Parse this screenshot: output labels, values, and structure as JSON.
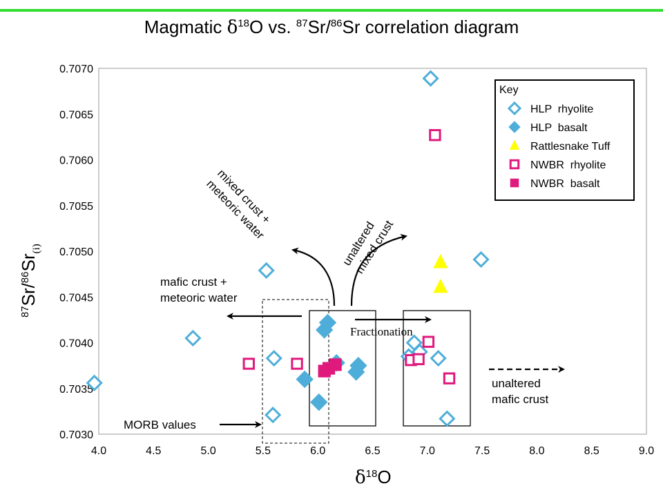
{
  "title_parts": {
    "a": "Magmatic ",
    "delta": "δ",
    "sup1": "18",
    "b": "O vs. ",
    "sup2": "87",
    "c": "Sr/",
    "sup3": "86",
    "d": "Sr correlation diagram"
  },
  "colors": {
    "rhyolite_blue": "#4eaed9",
    "nwbr_pink": "#e0197d",
    "tuff_yellow": "#ffff00",
    "frame_rule_green": "#33dd33"
  },
  "chart_data": {
    "type": "scatter",
    "title": "Magmatic δ18O vs. 87Sr/86Sr correlation diagram",
    "xlabel": "δ18O",
    "ylabel": "87Sr/86Sr(i)",
    "xlim": [
      4.0,
      9.0
    ],
    "ylim": [
      0.703,
      0.707
    ],
    "x_ticks": [
      "4.0",
      "4.5",
      "5.0",
      "5.5",
      "6.0",
      "6.5",
      "7.0",
      "7.5",
      "8.0",
      "8.5",
      "9.0"
    ],
    "y_ticks": [
      "0.7070",
      "0.7065",
      "0.7060",
      "0.7055",
      "0.7050",
      "0.7045",
      "0.7040",
      "0.7035",
      "0.7030"
    ],
    "grid": false,
    "legend_position": "top-right",
    "legend_title": "Key",
    "series": [
      {
        "name": "HLP  rhyolite",
        "marker": "diamond-open",
        "color": "#4eaed9",
        "points": [
          [
            3.96,
            0.70356
          ],
          [
            4.86,
            0.70405
          ],
          [
            5.53,
            0.70479
          ],
          [
            5.6,
            0.70383
          ],
          [
            5.59,
            0.70321
          ],
          [
            7.03,
            0.70689
          ],
          [
            7.49,
            0.70491
          ],
          [
            6.88,
            0.704
          ],
          [
            6.93,
            0.7039
          ],
          [
            6.83,
            0.70385
          ],
          [
            7.1,
            0.70383
          ],
          [
            7.18,
            0.70317
          ]
        ]
      },
      {
        "name": "HLP  basalt",
        "marker": "diamond-filled",
        "color": "#4eaed9",
        "points": [
          [
            6.09,
            0.70422
          ],
          [
            6.06,
            0.70414
          ],
          [
            5.88,
            0.7036
          ],
          [
            6.01,
            0.70335
          ],
          [
            6.17,
            0.70378
          ],
          [
            6.37,
            0.70375
          ],
          [
            6.35,
            0.70368
          ]
        ]
      },
      {
        "name": "Rattlesnake Tuff",
        "marker": "triangle-filled",
        "color": "#ffff00",
        "points": [
          [
            7.12,
            0.70488
          ],
          [
            7.12,
            0.70461
          ]
        ]
      },
      {
        "name": "NWBR  rhyolite",
        "marker": "square-open",
        "color": "#e0197d",
        "points": [
          [
            7.07,
            0.70627
          ],
          [
            5.37,
            0.70377
          ],
          [
            5.81,
            0.70377
          ],
          [
            7.01,
            0.70401
          ],
          [
            6.85,
            0.70381
          ],
          [
            6.92,
            0.70382
          ],
          [
            7.2,
            0.70361
          ]
        ]
      },
      {
        "name": "NWBR  basalt",
        "marker": "square-filled",
        "color": "#e0197d",
        "points": [
          [
            6.06,
            0.70369
          ],
          [
            6.1,
            0.70372
          ],
          [
            6.16,
            0.70376
          ]
        ]
      }
    ],
    "annotations": {
      "mixed_crust_meteoric": "mixed crust +\nmeteoric water",
      "unaltered_mixed_crust": "unaltered\nmixed crust",
      "mafic_crust_meteoric_1": "mafic crust +",
      "mafic_crust_meteoric_2": "meteoric water",
      "fractionation": "Fractionation",
      "unaltered_mafic_1": "unaltered",
      "unaltered_mafic_2": "mafic crust",
      "morb": "MORB values"
    }
  }
}
